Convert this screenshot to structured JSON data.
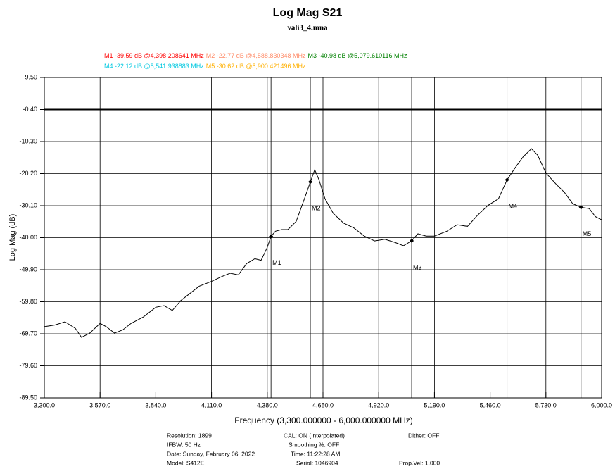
{
  "chart_data": {
    "type": "line",
    "title": "Log Mag S21",
    "subtitle": "vali3_4.mna",
    "x_label": "Frequency (3,300.000000 - 6,000.000000 MHz)",
    "y_label": "Log Mag (dB)",
    "color": "#000000",
    "x": [
      3300,
      3350,
      3400,
      3450,
      3480,
      3520,
      3570,
      3600,
      3640,
      3680,
      3720,
      3780,
      3840,
      3880,
      3920,
      3960,
      4000,
      4050,
      4110,
      4160,
      4200,
      4240,
      4280,
      4320,
      4350,
      4380,
      4398.208641,
      4420,
      4450,
      4480,
      4520,
      4560,
      4588.830348,
      4610,
      4630,
      4660,
      4700,
      4750,
      4800,
      4850,
      4900,
      4950,
      5000,
      5040,
      5079.610116,
      5110,
      5150,
      5190,
      5250,
      5300,
      5350,
      5400,
      5450,
      5500,
      5541.938883,
      5580,
      5620,
      5660,
      5690,
      5730,
      5780,
      5820,
      5860,
      5900.421496,
      5940,
      5970,
      6000
    ],
    "values": [
      -67.5,
      -67.0,
      -66.0,
      -68.0,
      -70.8,
      -69.5,
      -66.5,
      -67.5,
      -69.5,
      -68.5,
      -66.5,
      -64.5,
      -61.5,
      -61.0,
      -62.5,
      -59.5,
      -57.5,
      -55.0,
      -53.5,
      -52.0,
      -51.0,
      -51.5,
      -48.0,
      -46.5,
      -47.0,
      -43.0,
      -39.59,
      -38.0,
      -37.5,
      -37.5,
      -35.0,
      -28.0,
      -22.77,
      -19.0,
      -22.0,
      -28.0,
      -32.5,
      -35.5,
      -37.0,
      -39.5,
      -41.0,
      -40.5,
      -41.5,
      -42.5,
      -40.98,
      -38.8,
      -39.5,
      -39.5,
      -38.0,
      -36.0,
      -36.5,
      -33.0,
      -30.0,
      -28.0,
      -22.12,
      -18.5,
      -15.0,
      -12.5,
      -14.5,
      -20.0,
      -23.5,
      -26.0,
      -29.5,
      -30.62,
      -31.0,
      -33.5,
      -34.5
    ],
    "xlim": [
      3300,
      6000
    ],
    "ylim": [
      -89.5,
      9.5
    ],
    "xticks": [
      {
        "value": 3300,
        "label": "3,300.0"
      },
      {
        "value": 3570,
        "label": "3,570.0"
      },
      {
        "value": 3840,
        "label": "3,840.0"
      },
      {
        "value": 4110,
        "label": "4,110.0"
      },
      {
        "value": 4380,
        "label": "4,380.0"
      },
      {
        "value": 4650,
        "label": "4,650.0"
      },
      {
        "value": 4920,
        "label": "4,920.0"
      },
      {
        "value": 5190,
        "label": "5,190.0"
      },
      {
        "value": 5460,
        "label": "5,460.0"
      },
      {
        "value": 5730,
        "label": "5,730.0"
      },
      {
        "value": 6000,
        "label": "6,000.0"
      }
    ],
    "yticks": [
      {
        "value": 9.5,
        "label": "9.50"
      },
      {
        "value": -0.4,
        "label": "-0.40"
      },
      {
        "value": -10.3,
        "label": "-10.30"
      },
      {
        "value": -20.2,
        "label": "-20.20"
      },
      {
        "value": -30.1,
        "label": "-30.10"
      },
      {
        "value": -40.0,
        "label": "-40.00"
      },
      {
        "value": -49.9,
        "label": "-49.90"
      },
      {
        "value": -59.8,
        "label": "-59.80"
      },
      {
        "value": -69.7,
        "label": "-69.70"
      },
      {
        "value": -79.6,
        "label": "-79.60"
      },
      {
        "value": -89.5,
        "label": "-89.50"
      }
    ],
    "grid": true,
    "reference_level": -0.4,
    "markers": [
      {
        "name": "M1",
        "x": 4398.208641,
        "y": -39.59,
        "label": "M1 -39.59 dB @4,398.208641 MHz",
        "color": "#ff0000"
      },
      {
        "name": "M2",
        "x": 4588.830348,
        "y": -22.77,
        "label": "M2 -22.77 dB @4,588.830348 MHz",
        "color": "#ff8c69"
      },
      {
        "name": "M3",
        "x": 5079.610116,
        "y": -40.98,
        "label": "M3 -40.98 dB @5,079.610116 MHz",
        "color": "#008000"
      },
      {
        "name": "M4",
        "x": 5541.938883,
        "y": -22.12,
        "label": "M4 -22.12 dB @5,541.938883 MHz",
        "color": "#00c8e0"
      },
      {
        "name": "M5",
        "x": 5900.421496,
        "y": -30.62,
        "label": "M5 -30.62 dB @5,900.421496 MHz",
        "color": "#ffb000"
      }
    ],
    "footer": [
      "Resolution: 1899",
      "IFBW: 50 Hz",
      "Date: Sunday, February 06, 2022",
      "Model: S412E",
      "CAL: ON (Interpolated)",
      "Smoothing %:  OFF",
      "Time: 11:22:28 AM",
      "Serial: 1046904",
      "Dither:  OFF",
      "Prop.Vel: 1.000"
    ]
  }
}
